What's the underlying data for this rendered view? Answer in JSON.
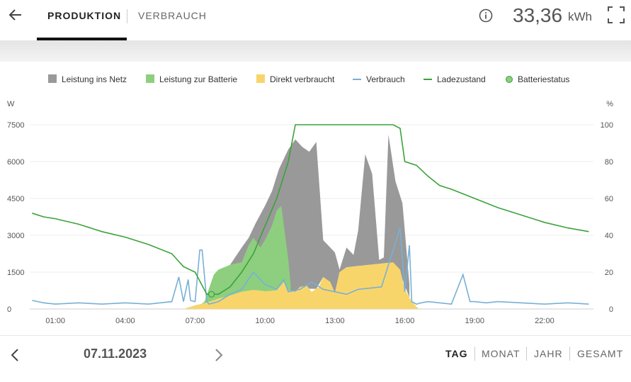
{
  "header": {
    "tabs": [
      "PRODUKTION",
      "VERBRAUCH"
    ],
    "total_value": "33,36",
    "total_unit": "kWh"
  },
  "footer": {
    "date": "07.11.2023",
    "periods": [
      "TAG",
      "MONAT",
      "JAHR",
      "GESAMT"
    ]
  },
  "colors": {
    "grid_feed": "#999999",
    "battery_charge": "#8dcf7e",
    "direct_use": "#f8d56b",
    "consumption": "#78b0d6",
    "state_of_charge": "#3aa33a"
  },
  "chart_data": {
    "type": "area",
    "left_unit": "W",
    "right_unit": "%",
    "x_label_unit": "hour",
    "x_ticks": [
      "01:00",
      "04:00",
      "07:00",
      "10:00",
      "13:00",
      "16:00",
      "19:00",
      "22:00"
    ],
    "y_ticks_left": [
      "0",
      "1500",
      "3000",
      "4500",
      "6000",
      "7500"
    ],
    "y_ticks_right": [
      "0",
      "20",
      "40",
      "60",
      "80",
      "100"
    ],
    "ylim_left": [
      0,
      7500
    ],
    "ylim_right": [
      0,
      100
    ],
    "xlim_hours": [
      -0.1,
      24.1
    ],
    "grid": true,
    "legend": [
      "Leistung ins Netz",
      "Leistung zur Batterie",
      "Direkt verbraucht",
      "Verbrauch",
      "Ladezustand",
      "Batteriestatus"
    ],
    "series": [
      {
        "name": "Direkt verbraucht",
        "axis": "left",
        "kind": "area",
        "x": [
          6.5,
          7.0,
          7.5,
          8.0,
          8.5,
          9.0,
          9.5,
          10.0,
          10.5,
          10.8,
          11.0,
          11.3,
          11.5,
          11.8,
          12.0,
          12.3,
          12.5,
          12.8,
          13.0,
          13.2,
          13.5,
          14.0,
          14.5,
          15.0,
          15.5,
          15.8,
          16.0,
          16.3,
          16.6
        ],
        "y": [
          0,
          150,
          250,
          420,
          550,
          700,
          780,
          720,
          760,
          1100,
          760,
          700,
          900,
          950,
          700,
          880,
          1300,
          1100,
          650,
          1500,
          1700,
          1750,
          1800,
          1850,
          1900,
          1600,
          800,
          300,
          0
        ]
      },
      {
        "name": "Leistung zur Batterie",
        "axis": "left",
        "kind": "stacked-top",
        "x": [
          7.0,
          7.4,
          7.8,
          8.0,
          8.5,
          9.0,
          9.3,
          9.5,
          9.8,
          10.0,
          10.3,
          10.5,
          10.7,
          11.0,
          11.1
        ],
        "y": [
          0,
          300,
          1400,
          1600,
          1800,
          1900,
          2600,
          2900,
          2500,
          2800,
          3400,
          4000,
          4200,
          2000,
          1000
        ]
      },
      {
        "name": "Leistung ins Netz",
        "axis": "left",
        "kind": "stacked-top",
        "x": [
          8.5,
          9.0,
          9.3,
          9.6,
          10.0,
          10.3,
          10.6,
          11.0,
          11.3,
          11.6,
          11.9,
          12.2,
          12.5,
          12.8,
          13.0,
          13.2,
          13.5,
          13.8,
          14.0,
          14.3,
          14.6,
          14.9,
          15.1,
          15.3,
          15.6,
          15.9,
          16.2
        ],
        "y": [
          1800,
          2500,
          2900,
          3500,
          4200,
          4800,
          5700,
          6500,
          6900,
          6600,
          6400,
          6800,
          2800,
          2500,
          2300,
          1600,
          2500,
          2200,
          3200,
          6300,
          5500,
          2000,
          2100,
          7100,
          5200,
          4300,
          1000
        ]
      },
      {
        "name": "Verbrauch",
        "axis": "left",
        "kind": "line",
        "x": [
          0,
          0.5,
          1,
          2,
          3,
          4,
          5,
          5.5,
          6,
          6.3,
          6.5,
          6.7,
          6.8,
          7.0,
          7.2,
          7.3,
          7.5,
          7.6,
          7.8,
          8.0,
          8.5,
          9.0,
          9.5,
          10.0,
          10.5,
          10.8,
          11.0,
          11.5,
          12.0,
          12.5,
          13.0,
          13.5,
          14.0,
          15.0,
          15.8,
          16.0,
          16.2,
          16.3,
          16.5,
          16.7,
          17.0,
          18.0,
          18.5,
          18.8,
          19.0,
          19.5,
          20.0,
          21.0,
          22.0,
          23.0,
          23.9
        ],
        "y": [
          350,
          250,
          200,
          250,
          200,
          250,
          200,
          250,
          300,
          1300,
          300,
          1200,
          350,
          300,
          2400,
          2400,
          300,
          200,
          250,
          300,
          600,
          800,
          1500,
          1000,
          800,
          1200,
          700,
          800,
          1100,
          800,
          700,
          600,
          800,
          900,
          3300,
          700,
          2600,
          300,
          200,
          250,
          300,
          200,
          1400,
          300,
          300,
          250,
          300,
          250,
          200,
          250,
          200
        ]
      },
      {
        "name": "Ladezustand",
        "axis": "right",
        "kind": "line",
        "x": [
          0,
          0.5,
          1,
          2,
          3,
          4,
          5,
          6,
          6.5,
          7,
          7.5,
          8.0,
          8.5,
          9.0,
          9.5,
          10.0,
          10.5,
          11.0,
          11.3,
          12.0,
          13.0,
          14.0,
          15.0,
          15.5,
          15.8,
          16.0,
          16.5,
          17.0,
          17.5,
          18.0,
          19.0,
          20.0,
          21.0,
          22.0,
          23.0,
          23.9
        ],
        "y": [
          52,
          50,
          49,
          46,
          42,
          39,
          35,
          30,
          23,
          20,
          8,
          8,
          12,
          20,
          30,
          45,
          60,
          80,
          100,
          100,
          100,
          100,
          100,
          100,
          98,
          80,
          78,
          72,
          67,
          65,
          60,
          55,
          51,
          47,
          44,
          42
        ]
      },
      {
        "name": "Batteriestatus",
        "axis": "right",
        "kind": "point",
        "x": [
          7.7
        ],
        "y": [
          8
        ]
      }
    ]
  }
}
